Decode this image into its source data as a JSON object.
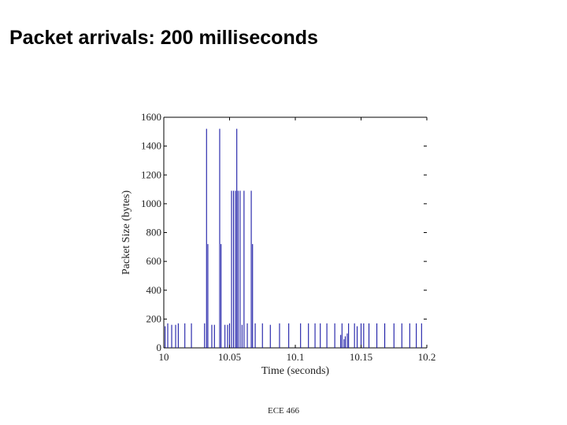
{
  "slide": {
    "title": "Packet arrivals: 200 milliseconds",
    "footer": "ECE 466"
  },
  "chart_data": {
    "type": "bar",
    "title": "",
    "xlabel": "Time (seconds)",
    "ylabel": "Packet Size (bytes)",
    "xlim": [
      10,
      10.2
    ],
    "ylim": [
      0,
      1600
    ],
    "xticks": [
      10,
      10.05,
      10.1,
      10.15,
      10.2
    ],
    "xtick_labels": [
      "10",
      "10.05",
      "10.1",
      "10.15",
      "10.2"
    ],
    "yticks": [
      0,
      200,
      400,
      600,
      800,
      1000,
      1200,
      1400,
      1600
    ],
    "ytick_labels": [
      "0",
      "200",
      "400",
      "600",
      "800",
      "1000",
      "1200",
      "1400",
      "1600"
    ],
    "grid": false,
    "color": "#1a1aa6",
    "points": [
      [
        10.001,
        150
      ],
      [
        10.003,
        170
      ],
      [
        10.006,
        160
      ],
      [
        10.009,
        160
      ],
      [
        10.011,
        170
      ],
      [
        10.016,
        170
      ],
      [
        10.021,
        170
      ],
      [
        10.031,
        170
      ],
      [
        10.0325,
        1520
      ],
      [
        10.0335,
        720
      ],
      [
        10.0365,
        160
      ],
      [
        10.0385,
        160
      ],
      [
        10.0425,
        1520
      ],
      [
        10.0435,
        720
      ],
      [
        10.0465,
        160
      ],
      [
        10.0485,
        160
      ],
      [
        10.05,
        170
      ],
      [
        10.0515,
        1090
      ],
      [
        10.053,
        1090
      ],
      [
        10.0545,
        1090
      ],
      [
        10.0555,
        1520
      ],
      [
        10.0565,
        1090
      ],
      [
        10.058,
        1090
      ],
      [
        10.0595,
        160
      ],
      [
        10.061,
        1090
      ],
      [
        10.0635,
        170
      ],
      [
        10.0665,
        1090
      ],
      [
        10.0675,
        720
      ],
      [
        10.0695,
        170
      ],
      [
        10.075,
        170
      ],
      [
        10.081,
        160
      ],
      [
        10.088,
        170
      ],
      [
        10.095,
        170
      ],
      [
        10.1,
        10
      ],
      [
        10.104,
        170
      ],
      [
        10.11,
        170
      ],
      [
        10.115,
        170
      ],
      [
        10.119,
        170
      ],
      [
        10.124,
        170
      ],
      [
        10.13,
        170
      ],
      [
        10.1345,
        90
      ],
      [
        10.1355,
        170
      ],
      [
        10.137,
        60
      ],
      [
        10.138,
        80
      ],
      [
        10.1395,
        100
      ],
      [
        10.1405,
        170
      ],
      [
        10.145,
        170
      ],
      [
        10.147,
        150
      ],
      [
        10.15,
        170
      ],
      [
        10.152,
        170
      ],
      [
        10.156,
        170
      ],
      [
        10.162,
        170
      ],
      [
        10.168,
        170
      ],
      [
        10.175,
        170
      ],
      [
        10.181,
        170
      ],
      [
        10.187,
        170
      ],
      [
        10.192,
        170
      ],
      [
        10.196,
        170
      ]
    ]
  }
}
